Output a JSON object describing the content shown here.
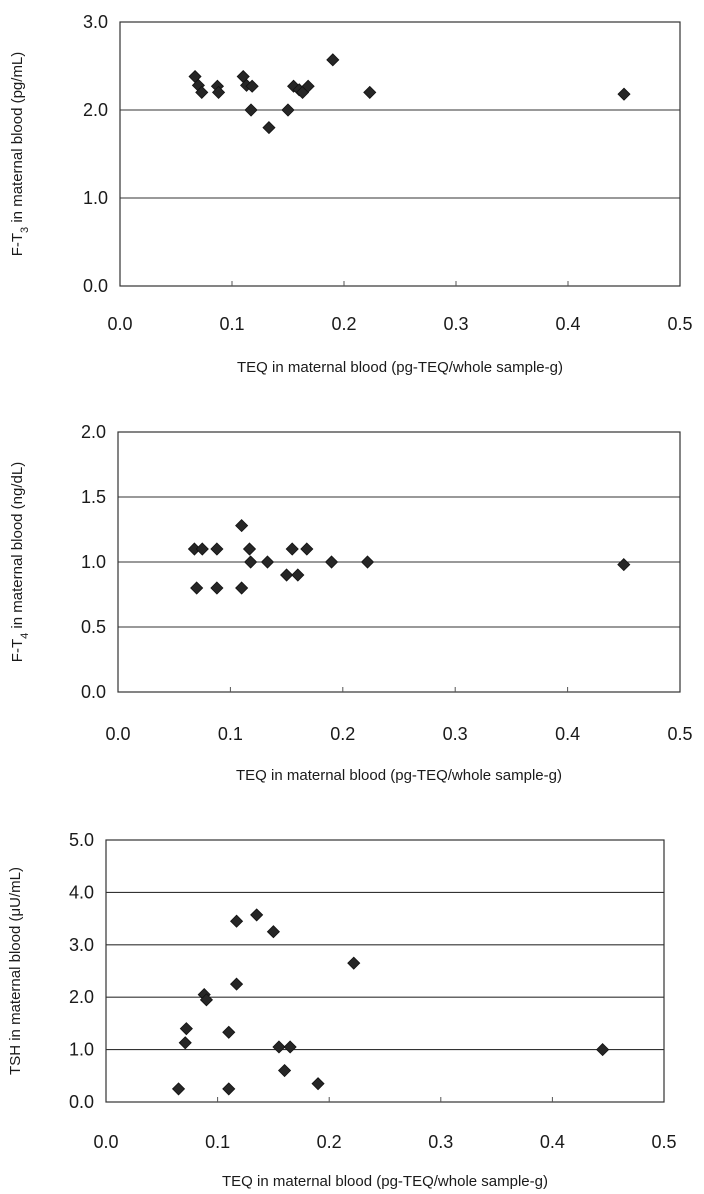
{
  "chart_data": [
    {
      "type": "scatter",
      "xlabel": "TEQ in maternal blood (pg-TEQ/whole sample-g)",
      "ylabel": "F-T3 in maternal blood (pg/mL)",
      "ylabel_main": "F-T",
      "ylabel_sub": "3",
      "ylabel_rest": " in maternal blood (pg/mL)",
      "xlim": [
        0,
        0.5
      ],
      "ylim": [
        0,
        3.0
      ],
      "xticks": [
        "0.0",
        "0.1",
        "0.2",
        "0.3",
        "0.4",
        "0.5"
      ],
      "xtick_values": [
        0,
        0.1,
        0.2,
        0.3,
        0.4,
        0.5
      ],
      "yticks": [
        "0.0",
        "1.0",
        "2.0",
        "3.0"
      ],
      "ytick_values": [
        0,
        1.0,
        2.0,
        3.0
      ],
      "grid": "horizontal",
      "points": [
        {
          "x": 0.067,
          "y": 2.38
        },
        {
          "x": 0.07,
          "y": 2.28
        },
        {
          "x": 0.073,
          "y": 2.2
        },
        {
          "x": 0.087,
          "y": 2.27
        },
        {
          "x": 0.088,
          "y": 2.2
        },
        {
          "x": 0.11,
          "y": 2.38
        },
        {
          "x": 0.113,
          "y": 2.28
        },
        {
          "x": 0.118,
          "y": 2.27
        },
        {
          "x": 0.117,
          "y": 2.0
        },
        {
          "x": 0.133,
          "y": 1.8
        },
        {
          "x": 0.15,
          "y": 2.0
        },
        {
          "x": 0.155,
          "y": 2.27
        },
        {
          "x": 0.16,
          "y": 2.23
        },
        {
          "x": 0.163,
          "y": 2.2
        },
        {
          "x": 0.168,
          "y": 2.27
        },
        {
          "x": 0.19,
          "y": 2.57
        },
        {
          "x": 0.223,
          "y": 2.2
        },
        {
          "x": 0.45,
          "y": 2.18
        }
      ]
    },
    {
      "type": "scatter",
      "xlabel": "TEQ in maternal blood (pg-TEQ/whole sample-g)",
      "ylabel": "F-T4 in maternal blood (ng/dL)",
      "ylabel_main": "F-T",
      "ylabel_sub": "4",
      "ylabel_rest": " in maternal blood (ng/dL)",
      "xlim": [
        0,
        0.5
      ],
      "ylim": [
        0,
        2.0
      ],
      "xticks": [
        "0.0",
        "0.1",
        "0.2",
        "0.3",
        "0.4",
        "0.5"
      ],
      "xtick_values": [
        0,
        0.1,
        0.2,
        0.3,
        0.4,
        0.5
      ],
      "yticks": [
        "0.0",
        "0.5",
        "1.0",
        "1.5",
        "2.0"
      ],
      "ytick_values": [
        0,
        0.5,
        1.0,
        1.5,
        2.0
      ],
      "grid": "horizontal",
      "points": [
        {
          "x": 0.068,
          "y": 1.1
        },
        {
          "x": 0.075,
          "y": 1.1
        },
        {
          "x": 0.07,
          "y": 0.8
        },
        {
          "x": 0.088,
          "y": 1.1
        },
        {
          "x": 0.088,
          "y": 0.8
        },
        {
          "x": 0.11,
          "y": 1.28
        },
        {
          "x": 0.117,
          "y": 1.1
        },
        {
          "x": 0.118,
          "y": 1.0
        },
        {
          "x": 0.11,
          "y": 0.8
        },
        {
          "x": 0.133,
          "y": 1.0
        },
        {
          "x": 0.15,
          "y": 0.9
        },
        {
          "x": 0.155,
          "y": 1.1
        },
        {
          "x": 0.16,
          "y": 0.9
        },
        {
          "x": 0.168,
          "y": 1.1
        },
        {
          "x": 0.19,
          "y": 1.0
        },
        {
          "x": 0.222,
          "y": 1.0
        },
        {
          "x": 0.45,
          "y": 0.98
        }
      ]
    },
    {
      "type": "scatter",
      "xlabel": "TEQ in maternal blood (pg-TEQ/whole sample-g)",
      "ylabel": "TSH in maternal blood (μU/mL)",
      "ylabel_main": "TSH in maternal blood (μU/mL)",
      "ylabel_sub": "",
      "ylabel_rest": "",
      "xlim": [
        0,
        0.5
      ],
      "ylim": [
        0,
        5.0
      ],
      "xticks": [
        "0.0",
        "0.1",
        "0.2",
        "0.3",
        "0.4",
        "0.5"
      ],
      "xtick_values": [
        0,
        0.1,
        0.2,
        0.3,
        0.4,
        0.5
      ],
      "yticks": [
        "0.0",
        "1.0",
        "2.0",
        "3.0",
        "4.0",
        "5.0"
      ],
      "ytick_values": [
        0,
        1.0,
        2.0,
        3.0,
        4.0,
        5.0
      ],
      "grid": "horizontal",
      "points": [
        {
          "x": 0.065,
          "y": 0.25
        },
        {
          "x": 0.072,
          "y": 1.4
        },
        {
          "x": 0.071,
          "y": 1.13
        },
        {
          "x": 0.088,
          "y": 2.05
        },
        {
          "x": 0.09,
          "y": 1.95
        },
        {
          "x": 0.11,
          "y": 1.33
        },
        {
          "x": 0.11,
          "y": 0.25
        },
        {
          "x": 0.117,
          "y": 3.45
        },
        {
          "x": 0.117,
          "y": 2.25
        },
        {
          "x": 0.135,
          "y": 3.57
        },
        {
          "x": 0.15,
          "y": 3.25
        },
        {
          "x": 0.155,
          "y": 1.05
        },
        {
          "x": 0.16,
          "y": 0.6
        },
        {
          "x": 0.165,
          "y": 1.05
        },
        {
          "x": 0.19,
          "y": 0.35
        },
        {
          "x": 0.222,
          "y": 2.65
        },
        {
          "x": 0.445,
          "y": 1.0
        }
      ]
    }
  ]
}
